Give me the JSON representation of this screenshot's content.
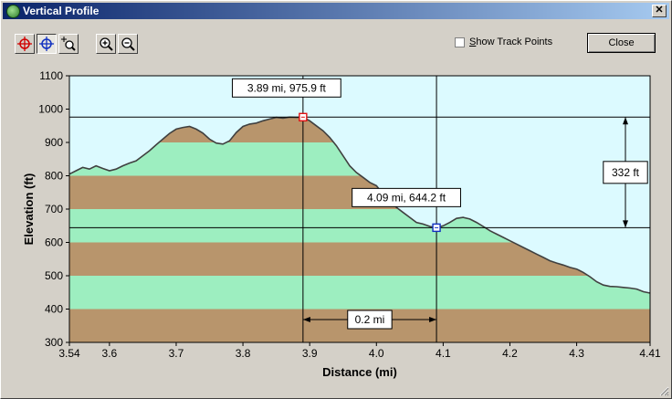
{
  "window": {
    "title": "Vertical Profile",
    "close_glyph": "✕"
  },
  "toolbar": {
    "buttons": [
      {
        "name": "red-crosshair-tool",
        "icon": "red-crosshair-icon"
      },
      {
        "name": "blue-crosshair-tool",
        "icon": "blue-crosshair-icon",
        "pressed": true
      },
      {
        "name": "zoom-region-tool",
        "icon": "zoom-region-icon"
      },
      {
        "name": "zoom-in-tool",
        "icon": "zoom-in-icon"
      },
      {
        "name": "zoom-out-tool",
        "icon": "zoom-out-icon"
      }
    ],
    "show_track_points_prefix": "S",
    "show_track_points_rest": "how Track Points",
    "show_track_points_checked": false,
    "close_label": "Close"
  },
  "chart_data": {
    "type": "area",
    "xlabel": "Distance   (mi)",
    "ylabel": "Elevation  (ft)",
    "xlim": [
      3.54,
      4.41
    ],
    "ylim": [
      300,
      1100
    ],
    "x_ticks": [
      "3.54",
      "3.6",
      "3.7",
      "3.8",
      "3.9",
      "4.0",
      "4.1",
      "4.2",
      "4.3",
      "4.41"
    ],
    "x_tick_values": [
      3.54,
      3.6,
      3.7,
      3.8,
      3.9,
      4.0,
      4.1,
      4.2,
      4.3,
      4.41
    ],
    "y_ticks": [
      "300",
      "400",
      "500",
      "600",
      "700",
      "800",
      "900",
      "1000",
      "1100"
    ],
    "y_tick_values": [
      300,
      400,
      500,
      600,
      700,
      800,
      900,
      1000,
      1100
    ],
    "band_colors": [
      "#b8956c",
      "#9deec0"
    ],
    "sky_color": "#dcfaff",
    "profile": {
      "x": [
        3.54,
        3.55,
        3.56,
        3.57,
        3.58,
        3.59,
        3.6,
        3.61,
        3.62,
        3.63,
        3.64,
        3.65,
        3.66,
        3.67,
        3.68,
        3.69,
        3.7,
        3.71,
        3.72,
        3.73,
        3.74,
        3.75,
        3.76,
        3.77,
        3.78,
        3.79,
        3.8,
        3.81,
        3.82,
        3.83,
        3.84,
        3.85,
        3.86,
        3.87,
        3.88,
        3.89,
        3.9,
        3.91,
        3.92,
        3.93,
        3.94,
        3.95,
        3.96,
        3.97,
        3.98,
        3.99,
        4.0,
        4.01,
        4.02,
        4.03,
        4.04,
        4.05,
        4.06,
        4.07,
        4.08,
        4.09,
        4.1,
        4.11,
        4.12,
        4.13,
        4.14,
        4.15,
        4.16,
        4.17,
        4.18,
        4.19,
        4.2,
        4.21,
        4.22,
        4.23,
        4.24,
        4.25,
        4.26,
        4.27,
        4.28,
        4.29,
        4.3,
        4.31,
        4.32,
        4.33,
        4.34,
        4.35,
        4.36,
        4.37,
        4.38,
        4.39,
        4.4,
        4.41
      ],
      "y": [
        805,
        815,
        825,
        820,
        830,
        822,
        815,
        820,
        830,
        838,
        845,
        860,
        875,
        893,
        910,
        927,
        940,
        945,
        948,
        940,
        928,
        910,
        898,
        895,
        905,
        930,
        948,
        955,
        958,
        965,
        970,
        975,
        973,
        976,
        975,
        976,
        965,
        950,
        935,
        915,
        890,
        860,
        830,
        810,
        795,
        780,
        770,
        745,
        725,
        705,
        690,
        675,
        660,
        655,
        648,
        644,
        650,
        660,
        672,
        675,
        670,
        660,
        648,
        635,
        625,
        615,
        605,
        595,
        585,
        575,
        565,
        555,
        545,
        538,
        532,
        525,
        520,
        510,
        497,
        482,
        472,
        468,
        467,
        465,
        463,
        460,
        452,
        448
      ]
    },
    "markers": [
      {
        "name": "red-marker",
        "x": 3.89,
        "y": 975.9,
        "label": "3.89 mi, 975.9 ft",
        "color": "#e01010"
      },
      {
        "name": "blue-marker",
        "x": 4.09,
        "y": 644.2,
        "label": "4.09 mi, 644.2 ft",
        "color": "#1030c0"
      }
    ],
    "distance_label": "0.2 mi",
    "elevation_diff_label": "332 ft"
  }
}
